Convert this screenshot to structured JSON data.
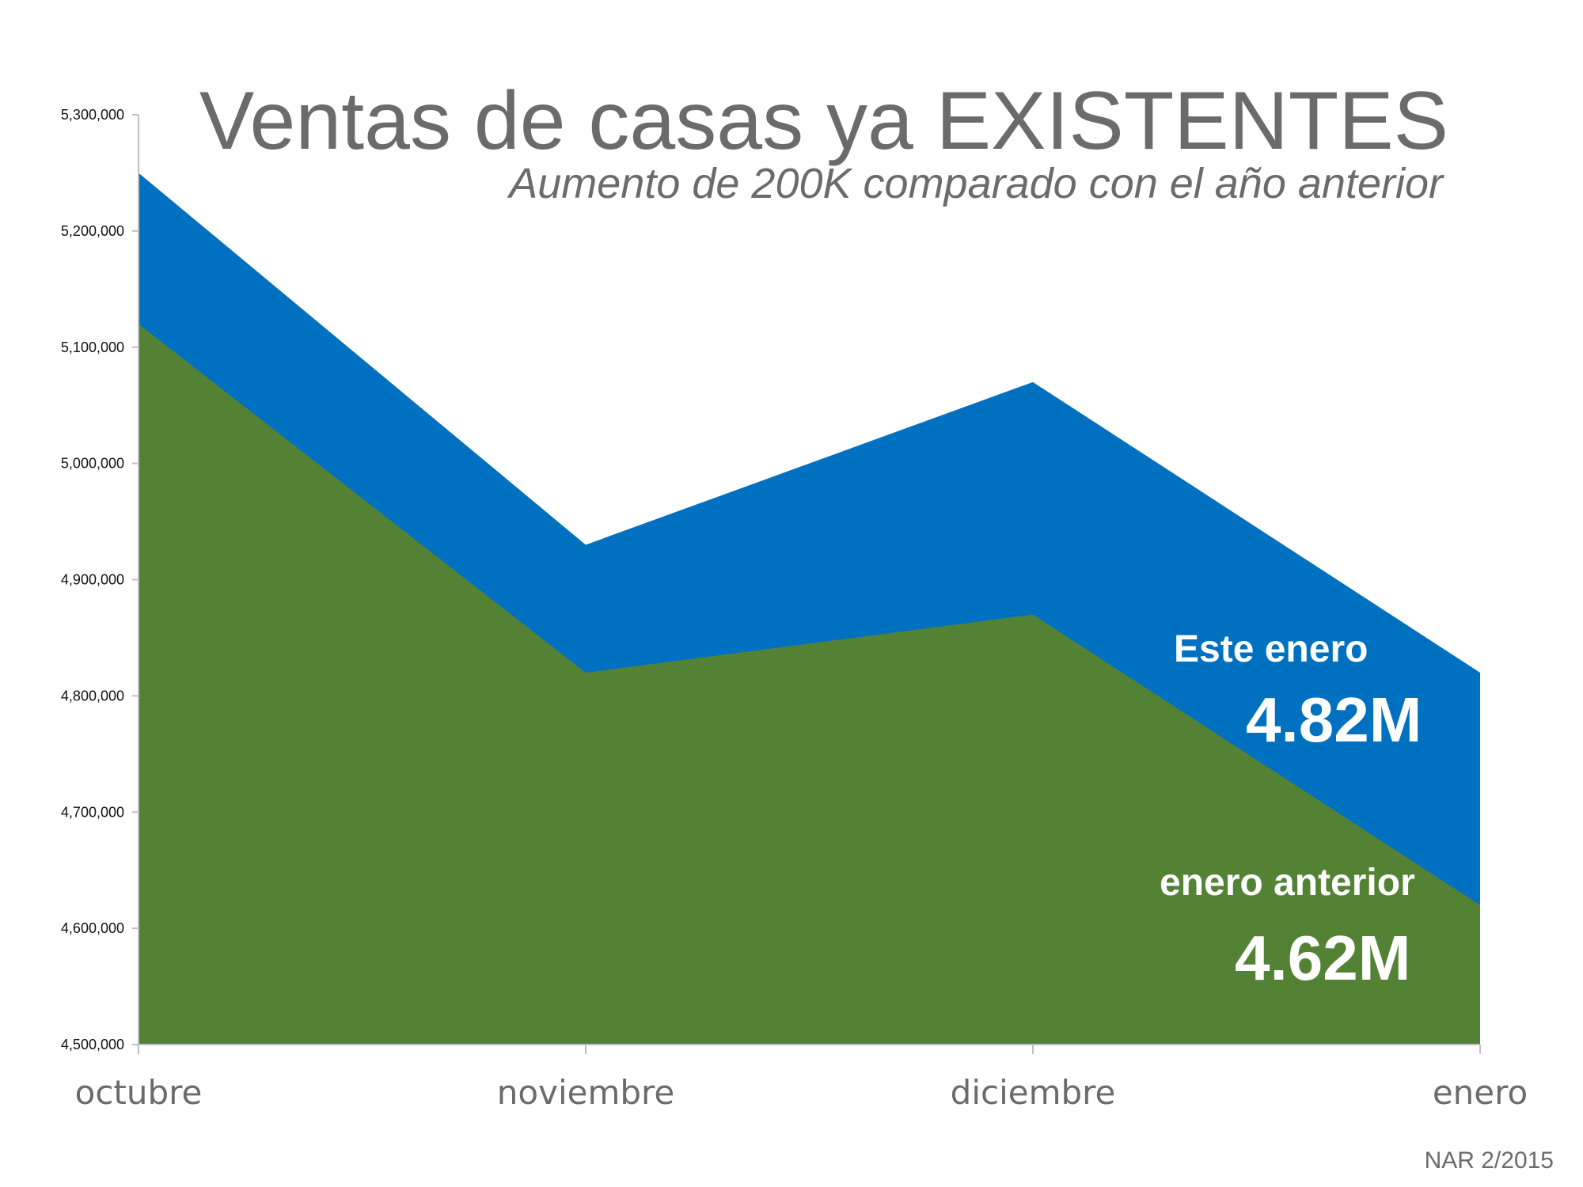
{
  "chart_data": {
    "type": "area",
    "title": "Ventas de casas ya EXISTENTES",
    "subtitle": "Aumento de 200K comparado con el año anterior",
    "categories": [
      "octubre",
      "noviembre",
      "diciembre",
      "enero"
    ],
    "series": [
      {
        "name": "Este enero",
        "values": [
          5250000,
          4930000,
          5070000,
          4820000
        ],
        "color": "#0070C0"
      },
      {
        "name": "enero anterior",
        "values": [
          5120000,
          4820000,
          4870000,
          4620000
        ],
        "color": "#548235"
      }
    ],
    "ylim": [
      4500000,
      5300000
    ],
    "yticks": [
      "4,500,000",
      "4,600,000",
      "4,700,000",
      "4,800,000",
      "4,900,000",
      "5,000,000",
      "5,100,000",
      "5,200,000",
      "5,300,000"
    ],
    "ytick_values": [
      4500000,
      4600000,
      4700000,
      4800000,
      4900000,
      5000000,
      5100000,
      5200000,
      5300000
    ],
    "annotations": [
      {
        "label": "Este enero",
        "value": "4.82M"
      },
      {
        "label": "enero anterior",
        "value": "4.62M"
      }
    ],
    "source": "NAR 2/2015",
    "grid": false,
    "legend": "none"
  }
}
